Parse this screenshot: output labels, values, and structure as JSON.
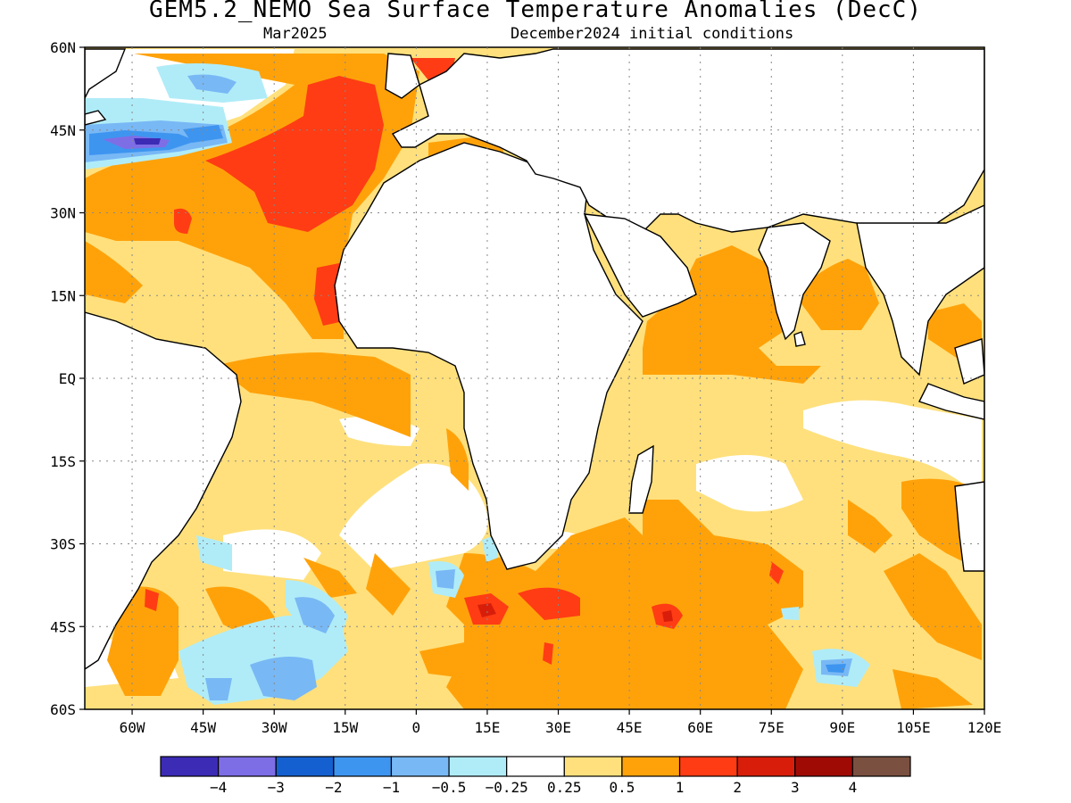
{
  "title": "GEM5.2_NEMO Sea Surface Temperature Anomalies (DecC)",
  "subtitle_left": "Mar2025",
  "subtitle_right": "December2024 initial conditions",
  "map": {
    "lon_range": [
      -70,
      120
    ],
    "lat_range": [
      -60,
      60
    ],
    "y_ticks": [
      {
        "value": 60,
        "label": "60N"
      },
      {
        "value": 45,
        "label": "45N"
      },
      {
        "value": 30,
        "label": "30N"
      },
      {
        "value": 15,
        "label": "15N"
      },
      {
        "value": 0,
        "label": "EQ"
      },
      {
        "value": -15,
        "label": "15S"
      },
      {
        "value": -30,
        "label": "30S"
      },
      {
        "value": -45,
        "label": "45S"
      },
      {
        "value": -60,
        "label": "60S"
      }
    ],
    "x_ticks": [
      {
        "value": -60,
        "label": "60W"
      },
      {
        "value": -45,
        "label": "45W"
      },
      {
        "value": -30,
        "label": "30W"
      },
      {
        "value": -15,
        "label": "15W"
      },
      {
        "value": 0,
        "label": "0"
      },
      {
        "value": 15,
        "label": "15E"
      },
      {
        "value": 30,
        "label": "30E"
      },
      {
        "value": 45,
        "label": "45E"
      },
      {
        "value": 60,
        "label": "60E"
      },
      {
        "value": 75,
        "label": "75E"
      },
      {
        "value": 90,
        "label": "90E"
      },
      {
        "value": 105,
        "label": "105E"
      },
      {
        "value": 120,
        "label": "120E"
      }
    ],
    "grid": true
  },
  "colorbar": {
    "colors": [
      "#3c2bb5",
      "#7e6ee6",
      "#1560d0",
      "#3e95f0",
      "#78b8f5",
      "#b0ecf8",
      "#ffffff",
      "#ffe07c",
      "#ffa20a",
      "#ff3c14",
      "#d81e0a",
      "#a00a05",
      "#7a5040"
    ],
    "labels": [
      "-4",
      "-3",
      "-2",
      "-1",
      "-0.5",
      "-0.25",
      "0.25",
      "0.5",
      "1",
      "2",
      "3",
      "4"
    ]
  }
}
